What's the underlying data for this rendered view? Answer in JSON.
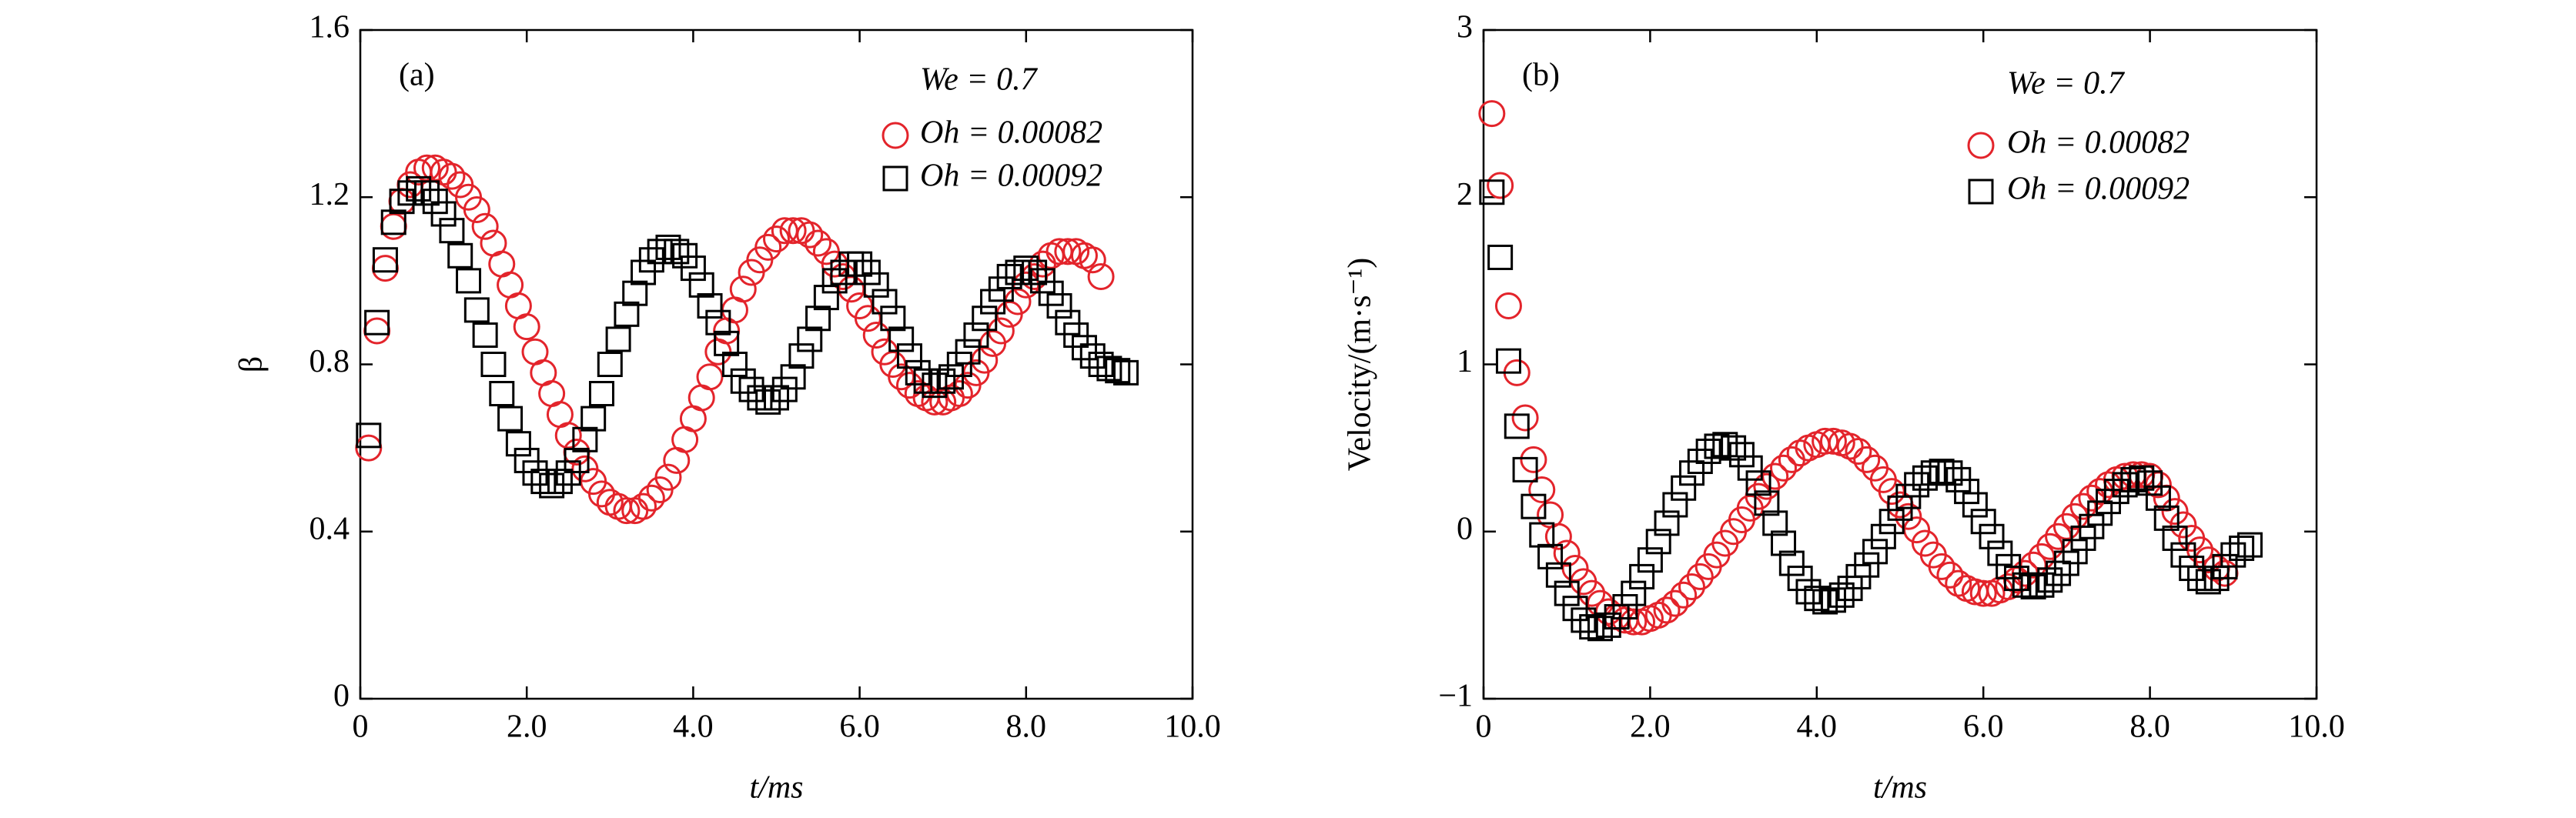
{
  "chart_data": [
    {
      "type": "scatter",
      "panel_label": "(a)",
      "legend_title": "We = 0.7",
      "x_label": "t/ms",
      "y_label": "β",
      "xlim": [
        0,
        10
      ],
      "ylim": [
        0,
        1.6
      ],
      "xticks": [
        0,
        {
          "value": 2,
          "label": "2.0"
        },
        {
          "value": 4,
          "label": "4.0"
        },
        {
          "value": 6,
          "label": "6.0"
        },
        {
          "value": 8,
          "label": "8.0"
        },
        {
          "value": 10,
          "label": "10.0"
        }
      ],
      "yticks": [
        0,
        0.4,
        0.8,
        1.2,
        1.6
      ],
      "x": [
        0.1,
        0.2,
        0.3,
        0.4,
        0.5,
        0.6,
        0.7,
        0.8,
        0.9,
        1.0,
        1.1,
        1.2,
        1.3,
        1.4,
        1.5,
        1.6,
        1.7,
        1.8,
        1.9,
        2.0,
        2.1,
        2.2,
        2.3,
        2.4,
        2.5,
        2.6,
        2.7,
        2.8,
        2.9,
        3.0,
        3.1,
        3.2,
        3.3,
        3.4,
        3.5,
        3.6,
        3.7,
        3.8,
        3.9,
        4.0,
        4.1,
        4.2,
        4.3,
        4.4,
        4.5,
        4.6,
        4.7,
        4.8,
        4.9,
        5.0,
        5.1,
        5.2,
        5.3,
        5.4,
        5.5,
        5.6,
        5.7,
        5.8,
        5.9,
        6.0,
        6.1,
        6.2,
        6.3,
        6.4,
        6.5,
        6.6,
        6.7,
        6.8,
        6.9,
        7.0,
        7.1,
        7.2,
        7.3,
        7.4,
        7.5,
        7.6,
        7.7,
        7.8,
        7.9,
        8.0,
        8.1,
        8.2,
        8.3,
        8.4,
        8.5,
        8.6,
        8.7,
        8.8,
        8.9,
        9.0,
        9.1,
        9.2
      ],
      "series": [
        {
          "name": "Oh = 0.00082",
          "color": "#e3242b",
          "marker": "circle",
          "values": [
            0.6,
            0.88,
            1.03,
            1.13,
            1.19,
            1.23,
            1.26,
            1.27,
            1.27,
            1.26,
            1.25,
            1.23,
            1.2,
            1.17,
            1.13,
            1.09,
            1.04,
            0.99,
            0.94,
            0.89,
            0.83,
            0.78,
            0.73,
            0.68,
            0.63,
            0.59,
            0.55,
            0.52,
            0.49,
            0.47,
            0.46,
            0.45,
            0.45,
            0.46,
            0.48,
            0.5,
            0.53,
            0.57,
            0.62,
            0.67,
            0.72,
            0.77,
            0.83,
            0.88,
            0.93,
            0.98,
            1.02,
            1.05,
            1.08,
            1.1,
            1.12,
            1.12,
            1.12,
            1.11,
            1.09,
            1.07,
            1.04,
            1.01,
            0.98,
            0.94,
            0.91,
            0.87,
            0.83,
            0.8,
            0.77,
            0.75,
            0.73,
            0.72,
            0.71,
            0.71,
            0.72,
            0.73,
            0.75,
            0.78,
            0.81,
            0.85,
            0.88,
            0.92,
            0.95,
            0.99,
            1.01,
            1.04,
            1.06,
            1.07,
            1.07,
            1.07,
            1.06,
            1.05,
            1.01,
            null,
            null,
            null
          ]
        },
        {
          "name": "Oh = 0.00092",
          "color": "#000000",
          "marker": "square",
          "values": [
            0.63,
            0.9,
            1.05,
            1.14,
            1.19,
            1.21,
            1.22,
            1.21,
            1.19,
            1.16,
            1.12,
            1.06,
            1.0,
            0.93,
            0.87,
            0.8,
            0.73,
            0.67,
            0.61,
            0.57,
            0.54,
            0.52,
            0.51,
            0.52,
            0.54,
            0.57,
            0.62,
            0.67,
            0.73,
            0.8,
            0.86,
            0.92,
            0.97,
            1.02,
            1.05,
            1.07,
            1.08,
            1.07,
            1.06,
            1.03,
            0.99,
            0.94,
            0.9,
            0.85,
            0.8,
            0.76,
            0.74,
            0.72,
            0.71,
            0.72,
            0.74,
            0.77,
            0.82,
            0.86,
            0.91,
            0.96,
            1.0,
            1.02,
            1.04,
            1.04,
            1.02,
            0.99,
            0.95,
            0.91,
            0.86,
            0.82,
            0.78,
            0.76,
            0.75,
            0.76,
            0.77,
            0.8,
            0.83,
            0.87,
            0.91,
            0.95,
            0.98,
            1.01,
            1.02,
            1.03,
            1.02,
            1.0,
            0.97,
            0.94,
            0.9,
            0.87,
            0.84,
            0.82,
            0.8,
            0.79,
            0.785,
            0.78
          ]
        }
      ]
    },
    {
      "type": "scatter",
      "panel_label": "(b)",
      "legend_title": "We = 0.7",
      "x_label": "t/ms",
      "y_label": "Velocity/(m·s⁻¹)",
      "xlim": [
        0,
        10
      ],
      "ylim": [
        -1,
        3
      ],
      "xticks": [
        0,
        {
          "value": 2,
          "label": "2.0"
        },
        {
          "value": 4,
          "label": "4.0"
        },
        {
          "value": 6,
          "label": "6.0"
        },
        {
          "value": 8,
          "label": "8.0"
        },
        {
          "value": 10,
          "label": "10.0"
        }
      ],
      "yticks": [
        {
          "value": -1,
          "label": "−1"
        },
        0,
        1,
        2,
        3
      ],
      "x": [
        0.1,
        0.2,
        0.3,
        0.4,
        0.5,
        0.6,
        0.7,
        0.8,
        0.9,
        1.0,
        1.1,
        1.2,
        1.3,
        1.4,
        1.5,
        1.6,
        1.7,
        1.8,
        1.9,
        2.0,
        2.1,
        2.2,
        2.3,
        2.4,
        2.5,
        2.6,
        2.7,
        2.8,
        2.9,
        3.0,
        3.1,
        3.2,
        3.3,
        3.4,
        3.5,
        3.6,
        3.7,
        3.8,
        3.9,
        4.0,
        4.1,
        4.2,
        4.3,
        4.4,
        4.5,
        4.6,
        4.7,
        4.8,
        4.9,
        5.0,
        5.1,
        5.2,
        5.3,
        5.4,
        5.5,
        5.6,
        5.7,
        5.8,
        5.9,
        6.0,
        6.1,
        6.2,
        6.3,
        6.4,
        6.5,
        6.6,
        6.7,
        6.8,
        6.9,
        7.0,
        7.1,
        7.2,
        7.3,
        7.4,
        7.5,
        7.6,
        7.7,
        7.8,
        7.9,
        8.0,
        8.1,
        8.2,
        8.3,
        8.4,
        8.5,
        8.6,
        8.7,
        8.8,
        8.9,
        9.0,
        9.1,
        9.2
      ],
      "series": [
        {
          "name": "Oh = 0.00082",
          "color": "#e3242b",
          "marker": "circle",
          "values": [
            2.5,
            2.07,
            1.35,
            0.95,
            0.68,
            0.43,
            0.25,
            0.1,
            -0.03,
            -0.13,
            -0.22,
            -0.3,
            -0.37,
            -0.43,
            -0.48,
            -0.51,
            -0.53,
            -0.54,
            -0.54,
            -0.52,
            -0.5,
            -0.47,
            -0.43,
            -0.38,
            -0.33,
            -0.27,
            -0.21,
            -0.14,
            -0.07,
            0,
            0.07,
            0.14,
            0.21,
            0.27,
            0.33,
            0.38,
            0.43,
            0.47,
            0.5,
            0.52,
            0.54,
            0.54,
            0.53,
            0.51,
            0.48,
            0.43,
            0.38,
            0.31,
            0.24,
            0.16,
            0.09,
            0.01,
            -0.07,
            -0.14,
            -0.21,
            -0.26,
            -0.31,
            -0.34,
            -0.36,
            -0.37,
            -0.37,
            -0.35,
            -0.33,
            -0.29,
            -0.25,
            -0.2,
            -0.15,
            -0.09,
            -0.03,
            0.03,
            0.09,
            0.15,
            0.2,
            0.24,
            0.28,
            0.31,
            0.33,
            0.34,
            0.34,
            0.33,
            0.28,
            0.2,
            0.12,
            0.04,
            -0.04,
            -0.11,
            -0.17,
            -0.22,
            -0.25,
            null,
            null,
            null
          ]
        },
        {
          "name": "Oh = 0.00092",
          "color": "#000000",
          "marker": "square",
          "values": [
            2.03,
            1.64,
            1.02,
            0.63,
            0.37,
            0.15,
            -0.02,
            -0.15,
            -0.26,
            -0.37,
            -0.46,
            -0.53,
            -0.57,
            -0.58,
            -0.56,
            -0.51,
            -0.45,
            -0.37,
            -0.27,
            -0.17,
            -0.06,
            0.05,
            0.16,
            0.26,
            0.35,
            0.42,
            0.48,
            0.51,
            0.52,
            0.5,
            0.46,
            0.38,
            0.29,
            0.17,
            0.05,
            -0.07,
            -0.19,
            -0.28,
            -0.36,
            -0.4,
            -0.42,
            -0.41,
            -0.38,
            -0.34,
            -0.27,
            -0.2,
            -0.12,
            -0.03,
            0.06,
            0.14,
            0.21,
            0.28,
            0.32,
            0.35,
            0.36,
            0.35,
            0.31,
            0.24,
            0.16,
            0.06,
            -0.03,
            -0.13,
            -0.21,
            -0.28,
            -0.32,
            -0.33,
            -0.32,
            -0.29,
            -0.25,
            -0.19,
            -0.12,
            -0.04,
            0.03,
            0.11,
            0.18,
            0.24,
            0.28,
            0.31,
            0.32,
            0.29,
            0.2,
            0.08,
            -0.04,
            -0.14,
            -0.22,
            -0.28,
            -0.3,
            -0.28,
            -0.21,
            -0.14,
            -0.1,
            -0.08
          ]
        }
      ]
    }
  ]
}
